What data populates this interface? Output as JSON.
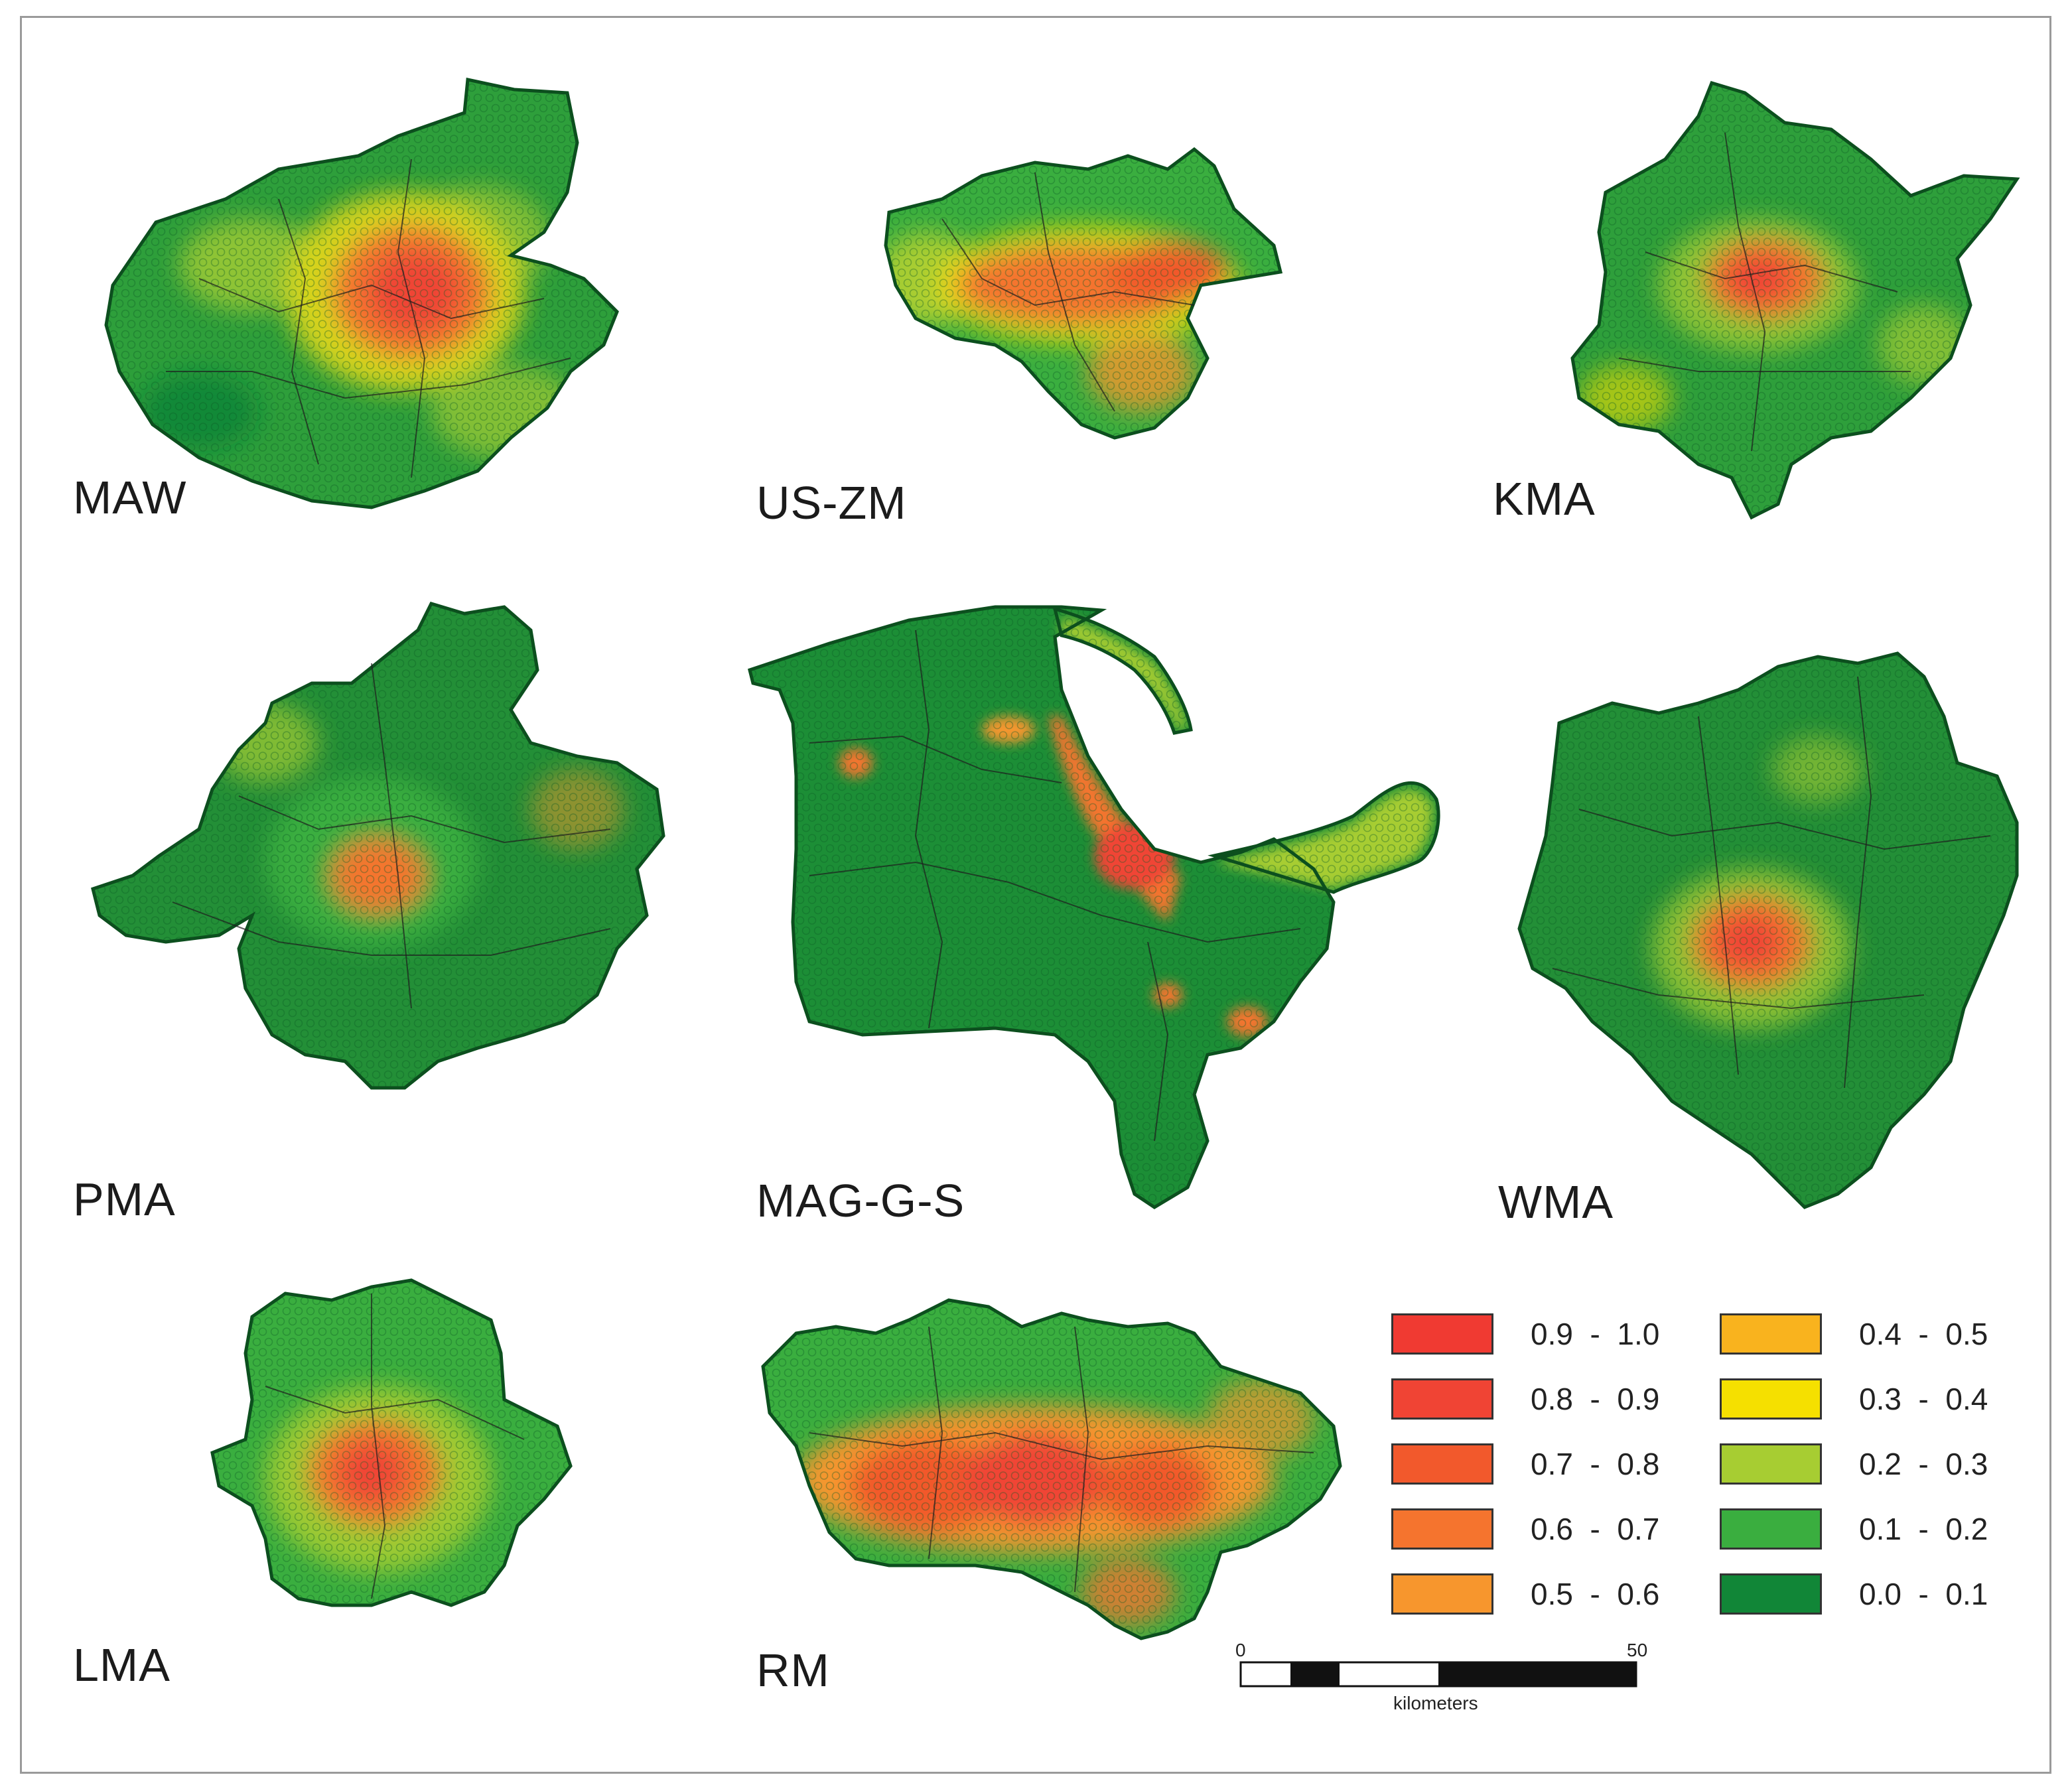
{
  "regions": [
    {
      "id": "MAW",
      "label": "MAW"
    },
    {
      "id": "US-ZM",
      "label": "US-ZM"
    },
    {
      "id": "KMA",
      "label": "KMA"
    },
    {
      "id": "PMA",
      "label": "PMA"
    },
    {
      "id": "MAG-G-S",
      "label": "MAG-G-S"
    },
    {
      "id": "WMA",
      "label": "WMA"
    },
    {
      "id": "LMA",
      "label": "LMA"
    },
    {
      "id": "RM",
      "label": "RM"
    }
  ],
  "legend": {
    "items": [
      {
        "label": "0.9  -  1.0",
        "color": "#f03a32"
      },
      {
        "label": "0.8  -  0.9",
        "color": "#f04434"
      },
      {
        "label": "0.7  -  0.8",
        "color": "#f2592c"
      },
      {
        "label": "0.6  -  0.7",
        "color": "#f5742e"
      },
      {
        "label": "0.5  -  0.6",
        "color": "#f7962d"
      },
      {
        "label": "0.4  -  0.5",
        "color": "#f9b31e"
      },
      {
        "label": "0.3  -  0.4",
        "color": "#f5e000"
      },
      {
        "label": "0.2  -  0.3",
        "color": "#a7cd32"
      },
      {
        "label": "0.1  -  0.2",
        "color": "#3aae3f"
      },
      {
        "label": "0.0  -  0.1",
        "color": "#118637"
      }
    ]
  },
  "scale_bar": {
    "start_label": "0",
    "end_label": "50",
    "unit": "kilometers"
  }
}
